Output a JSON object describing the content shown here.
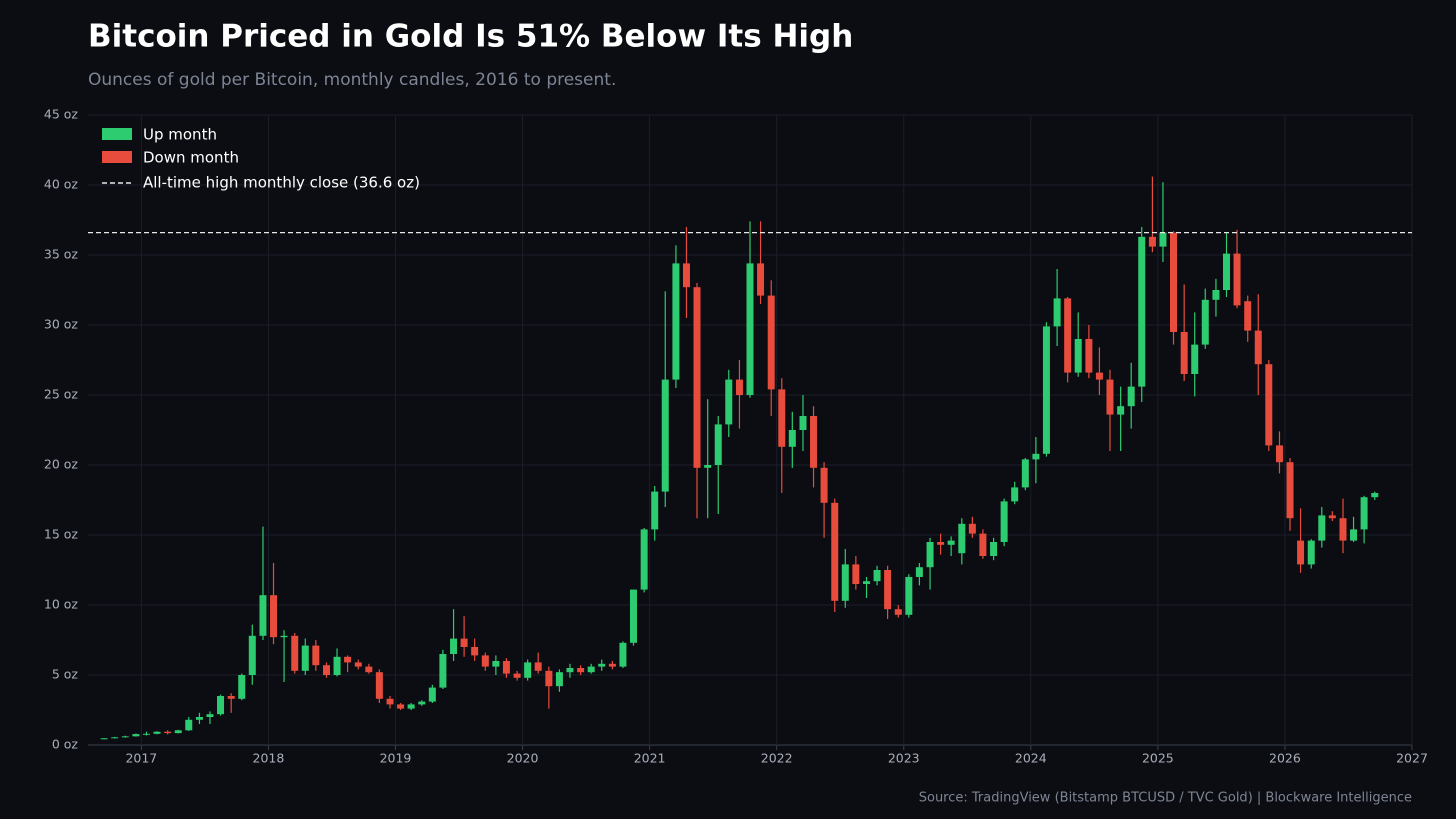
{
  "chart_data": {
    "type": "candlestick",
    "title": "Bitcoin Priced in Gold Is 51% Below Its High",
    "subtitle": "Ounces of gold per Bitcoin, monthly candles, 2016 to present.",
    "source": "Source: TradingView (Bitstamp BTCUSD / TVC Gold)  |  Blockware Intelligence",
    "up": {
      "name": "Up month",
      "color": "#2ecc71"
    },
    "down": {
      "name": "Down month",
      "color": "#e74c3c"
    },
    "reference_line": {
      "value": 36.6,
      "label": "All-time high monthly close (36.6 oz)",
      "color": "#e8e8e8",
      "style": "dashed"
    },
    "legend": "upper left",
    "grid": true,
    "xlim": [
      2016.58,
      2027
    ],
    "xticks": [
      2017,
      2018,
      2019,
      2020,
      2021,
      2022,
      2023,
      2024,
      2025,
      2026,
      2027
    ],
    "ylim": [
      0,
      45
    ],
    "yticks": [
      {
        "value": 0,
        "label": "0 oz"
      },
      {
        "value": 5,
        "label": "5 oz"
      },
      {
        "value": 10,
        "label": "10 oz"
      },
      {
        "value": 15,
        "label": "15 oz"
      },
      {
        "value": 20,
        "label": "20 oz"
      },
      {
        "value": 25,
        "label": "25 oz"
      },
      {
        "value": 30,
        "label": "30 oz"
      },
      {
        "value": 35,
        "label": "35 oz"
      },
      {
        "value": 40,
        "label": "40 oz"
      },
      {
        "value": 45,
        "label": "45 oz"
      }
    ],
    "x": [
      2016.707,
      2016.79,
      2016.873,
      2016.957,
      2017.04,
      2017.123,
      2017.207,
      2017.29,
      2017.373,
      2017.457,
      2017.54,
      2017.623,
      2017.707,
      2017.79,
      2017.873,
      2017.957,
      2018.04,
      2018.123,
      2018.207,
      2018.29,
      2018.373,
      2018.457,
      2018.54,
      2018.623,
      2018.707,
      2018.79,
      2018.873,
      2018.957,
      2019.04,
      2019.123,
      2019.207,
      2019.29,
      2019.373,
      2019.457,
      2019.54,
      2019.623,
      2019.707,
      2019.79,
      2019.873,
      2019.957,
      2020.04,
      2020.123,
      2020.207,
      2020.29,
      2020.373,
      2020.457,
      2020.54,
      2020.623,
      2020.707,
      2020.79,
      2020.873,
      2020.957,
      2021.04,
      2021.123,
      2021.207,
      2021.29,
      2021.373,
      2021.457,
      2021.54,
      2021.623,
      2021.707,
      2021.79,
      2021.873,
      2021.957,
      2022.04,
      2022.123,
      2022.207,
      2022.29,
      2022.373,
      2022.457,
      2022.54,
      2022.623,
      2022.707,
      2022.79,
      2022.873,
      2022.957,
      2023.04,
      2023.123,
      2023.207,
      2023.29,
      2023.373,
      2023.457,
      2023.54,
      2023.623,
      2023.707,
      2023.79,
      2023.873,
      2023.957,
      2024.04,
      2024.123,
      2024.207,
      2024.29,
      2024.373,
      2024.457,
      2024.54,
      2024.623,
      2024.707,
      2024.79,
      2024.873,
      2024.957,
      2025.04,
      2025.123,
      2025.207,
      2025.29,
      2025.373,
      2025.457,
      2025.54,
      2025.623,
      2025.707,
      2025.79,
      2025.873,
      2025.957,
      2026.04,
      2026.123,
      2026.207,
      2026.29,
      2026.373,
      2026.457,
      2026.54,
      2026.623,
      2026.707
    ],
    "open": [
      0.45,
      0.48,
      0.55,
      0.62,
      0.78,
      0.8,
      0.95,
      0.85,
      1.05,
      1.8,
      2.0,
      2.2,
      3.5,
      3.3,
      5.0,
      7.8,
      10.7,
      7.7,
      7.8,
      5.3,
      7.1,
      5.7,
      5.0,
      6.3,
      5.9,
      5.6,
      5.2,
      3.3,
      2.9,
      2.6,
      2.9,
      3.1,
      4.1,
      6.5,
      7.6,
      7.0,
      6.4,
      5.6,
      6.0,
      5.1,
      4.8,
      5.9,
      5.3,
      4.2,
      5.2,
      5.5,
      5.2,
      5.6,
      5.8,
      5.6,
      7.3,
      11.1,
      15.4,
      18.1,
      26.1,
      34.4,
      32.7,
      19.8,
      20.0,
      22.9,
      26.1,
      25.0,
      34.4,
      32.1,
      25.4,
      21.3,
      22.5,
      23.5,
      19.8,
      17.3,
      10.3,
      12.9,
      11.5,
      11.7,
      12.5,
      9.7,
      9.3,
      12.0,
      12.7,
      14.5,
      14.3,
      13.7,
      15.8,
      15.1,
      13.5,
      14.5,
      17.4,
      18.4,
      20.4,
      20.8,
      29.9,
      31.9,
      26.6,
      29.0,
      26.6,
      26.1,
      23.6,
      24.2,
      25.6,
      36.3,
      35.6,
      36.6,
      29.5,
      26.5,
      28.6,
      31.8,
      32.5,
      35.1,
      31.7,
      29.6,
      27.2,
      21.4,
      20.2,
      14.6,
      12.9,
      14.6,
      16.4,
      16.2,
      14.6,
      15.4,
      17.7
    ],
    "high": [
      0.5,
      0.58,
      0.66,
      0.82,
      0.95,
      0.98,
      1.05,
      1.08,
      2.0,
      2.3,
      2.4,
      3.6,
      3.7,
      5.1,
      8.6,
      15.6,
      13.0,
      8.2,
      8.0,
      7.6,
      7.5,
      5.9,
      6.9,
      6.4,
      6.1,
      5.8,
      5.4,
      3.5,
      3.0,
      3.0,
      3.2,
      4.3,
      6.8,
      9.7,
      9.2,
      7.6,
      6.6,
      6.4,
      6.2,
      5.3,
      6.1,
      6.6,
      5.6,
      5.4,
      5.8,
      5.7,
      5.8,
      6.1,
      6.0,
      7.4,
      11.1,
      15.5,
      18.5,
      32.4,
      35.7,
      37.0,
      33.0,
      24.7,
      23.5,
      26.8,
      27.5,
      37.4,
      37.4,
      33.2,
      26.2,
      23.8,
      25.0,
      24.2,
      20.2,
      17.6,
      14.0,
      13.5,
      12.0,
      12.8,
      12.8,
      10.0,
      12.2,
      13.0,
      14.8,
      15.1,
      14.9,
      16.2,
      16.3,
      15.4,
      14.8,
      17.6,
      18.8,
      20.5,
      22.0,
      30.2,
      34.0,
      32.0,
      30.9,
      30.0,
      28.4,
      26.8,
      25.6,
      27.3,
      37.0,
      40.6,
      40.2,
      36.7,
      32.9,
      30.9,
      32.6,
      33.3,
      36.6,
      36.8,
      32.1,
      32.2,
      27.5,
      22.4,
      20.5,
      16.9,
      14.7,
      17.0,
      16.7,
      17.6,
      16.3,
      17.8,
      18.1
    ],
    "low": [
      0.42,
      0.46,
      0.52,
      0.6,
      0.68,
      0.76,
      0.75,
      0.82,
      1.0,
      1.5,
      1.5,
      2.1,
      2.3,
      3.2,
      4.3,
      7.5,
      7.2,
      4.5,
      5.1,
      5.0,
      5.3,
      4.8,
      4.9,
      5.2,
      5.4,
      5.1,
      3.0,
      2.6,
      2.5,
      2.5,
      2.8,
      3.0,
      4.0,
      6.0,
      6.3,
      6.0,
      5.3,
      5.0,
      4.8,
      4.6,
      4.6,
      5.1,
      2.6,
      3.8,
      4.8,
      5.0,
      5.1,
      5.3,
      5.4,
      5.5,
      7.1,
      10.9,
      14.6,
      17.0,
      25.5,
      30.5,
      16.2,
      16.2,
      16.5,
      22.0,
      22.6,
      24.8,
      31.5,
      23.5,
      18.0,
      19.8,
      21.0,
      18.4,
      14.8,
      9.5,
      9.8,
      11.1,
      10.5,
      11.4,
      9.0,
      9.1,
      9.1,
      11.4,
      11.1,
      13.6,
      13.5,
      12.9,
      14.8,
      13.3,
      13.2,
      14.2,
      17.2,
      18.2,
      18.7,
      20.6,
      28.5,
      25.9,
      26.3,
      26.2,
      25.0,
      21.0,
      21.0,
      22.6,
      24.5,
      35.2,
      34.5,
      28.6,
      26.0,
      24.9,
      28.3,
      30.6,
      32.0,
      31.2,
      28.8,
      25.0,
      21.0,
      19.4,
      15.3,
      12.3,
      12.6,
      14.1,
      16.0,
      13.7,
      14.5,
      14.4,
      17.5
    ],
    "close": [
      0.48,
      0.55,
      0.62,
      0.78,
      0.8,
      0.95,
      0.85,
      1.05,
      1.8,
      2.0,
      2.2,
      3.5,
      3.3,
      5.0,
      7.8,
      10.7,
      7.7,
      7.8,
      5.3,
      7.1,
      5.7,
      5.0,
      6.3,
      5.9,
      5.6,
      5.2,
      3.3,
      2.9,
      2.6,
      2.9,
      3.1,
      4.1,
      6.5,
      7.6,
      7.0,
      6.4,
      5.6,
      6.0,
      5.1,
      4.8,
      5.9,
      5.3,
      4.2,
      5.2,
      5.5,
      5.2,
      5.6,
      5.8,
      5.6,
      7.3,
      11.1,
      15.4,
      18.1,
      26.1,
      34.4,
      32.7,
      19.8,
      20.0,
      22.9,
      26.1,
      25.0,
      34.4,
      32.1,
      25.4,
      21.3,
      22.5,
      23.5,
      19.8,
      17.3,
      10.3,
      12.9,
      11.5,
      11.7,
      12.5,
      9.7,
      9.3,
      12.0,
      12.7,
      14.5,
      14.3,
      14.6,
      15.8,
      15.1,
      13.5,
      14.5,
      17.4,
      18.4,
      20.4,
      20.8,
      29.9,
      31.9,
      26.6,
      29.0,
      26.6,
      26.1,
      23.6,
      24.2,
      25.6,
      36.3,
      35.6,
      36.6,
      29.5,
      26.5,
      28.6,
      31.8,
      32.5,
      35.1,
      31.4,
      29.6,
      27.2,
      21.4,
      20.2,
      16.2,
      12.9,
      14.6,
      16.4,
      16.2,
      14.6,
      15.4,
      17.7,
      18.0
    ]
  }
}
